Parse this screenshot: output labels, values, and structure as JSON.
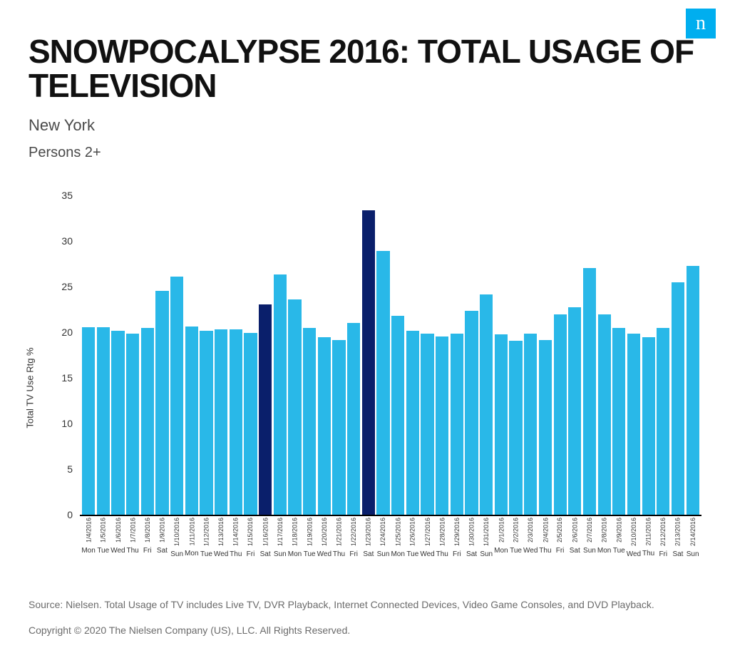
{
  "logo": {
    "text": "n",
    "bg_color": "#00aeef",
    "text_color": "#ffffff"
  },
  "title": {
    "text": "SNOWPOCALYPSE 2016: TOTAL USAGE OF TELEVISION",
    "color": "#111111",
    "fontsize": 46
  },
  "subtitle1": {
    "text": "New York",
    "color": "#4a4a4a",
    "fontsize": 22
  },
  "subtitle2": {
    "text": "Persons 2+",
    "color": "#4a4a4a",
    "fontsize": 20
  },
  "chart": {
    "type": "bar",
    "ylabel": "Total TV Use Rtg %",
    "ylabel_fontsize": 13,
    "ylabel_color": "#333333",
    "ylim": [
      0,
      35
    ],
    "yticks": [
      0,
      5,
      10,
      15,
      20,
      25,
      30,
      35
    ],
    "ytick_fontsize": 14,
    "ytick_color": "#333333",
    "xlabel_fontsize": 9,
    "xlabel_color": "#333333",
    "xday_fontsize": 10,
    "baseline_color": "#000000",
    "bar_color_default": "#29b8e8",
    "bar_color_highlight": "#0a1f6b",
    "background_color": "#ffffff",
    "bars": [
      {
        "date": "1/4/2016",
        "day": "Mon",
        "value": 20.5,
        "highlight": false
      },
      {
        "date": "1/5/2016",
        "day": "Tue",
        "value": 20.5,
        "highlight": false
      },
      {
        "date": "1/6/2016",
        "day": "Wed",
        "value": 20.1,
        "highlight": false
      },
      {
        "date": "1/7/2016",
        "day": "Thu",
        "value": 19.8,
        "highlight": false
      },
      {
        "date": "1/8/2016",
        "day": "Fri",
        "value": 20.4,
        "highlight": false
      },
      {
        "date": "1/9/2016",
        "day": "Sat",
        "value": 24.5,
        "highlight": false
      },
      {
        "date": "1/10/2016",
        "day": "Sun",
        "value": 26.1,
        "highlight": false
      },
      {
        "date": "1/11/2016",
        "day": "Mon",
        "value": 20.6,
        "highlight": false
      },
      {
        "date": "1/12/2016",
        "day": "Tue",
        "value": 20.1,
        "highlight": false
      },
      {
        "date": "1/13/2016",
        "day": "Wed",
        "value": 20.3,
        "highlight": false
      },
      {
        "date": "1/14/2016",
        "day": "Thu",
        "value": 20.3,
        "highlight": false
      },
      {
        "date": "1/15/2016",
        "day": "Fri",
        "value": 19.9,
        "highlight": false
      },
      {
        "date": "1/16/2016",
        "day": "Sat",
        "value": 23.0,
        "highlight": true
      },
      {
        "date": "1/17/2016",
        "day": "Sun",
        "value": 26.3,
        "highlight": false
      },
      {
        "date": "1/18/2016",
        "day": "Mon",
        "value": 23.6,
        "highlight": false
      },
      {
        "date": "1/19/2016",
        "day": "Tue",
        "value": 20.4,
        "highlight": false
      },
      {
        "date": "1/20/2016",
        "day": "Wed",
        "value": 19.4,
        "highlight": false
      },
      {
        "date": "1/21/2016",
        "day": "Thu",
        "value": 19.1,
        "highlight": false
      },
      {
        "date": "1/22/2016",
        "day": "Fri",
        "value": 21.0,
        "highlight": false
      },
      {
        "date": "1/23/2016",
        "day": "Sat",
        "value": 33.3,
        "highlight": true
      },
      {
        "date": "1/24/2016",
        "day": "Sun",
        "value": 28.9,
        "highlight": false
      },
      {
        "date": "1/25/2016",
        "day": "Mon",
        "value": 21.8,
        "highlight": false
      },
      {
        "date": "1/26/2016",
        "day": "Tue",
        "value": 20.1,
        "highlight": false
      },
      {
        "date": "1/27/2016",
        "day": "Wed",
        "value": 19.8,
        "highlight": false
      },
      {
        "date": "1/28/2016",
        "day": "Thu",
        "value": 19.5,
        "highlight": false
      },
      {
        "date": "1/29/2016",
        "day": "Fri",
        "value": 19.8,
        "highlight": false
      },
      {
        "date": "1/30/2016",
        "day": "Sat",
        "value": 22.3,
        "highlight": false
      },
      {
        "date": "1/31/2016",
        "day": "Sun",
        "value": 24.1,
        "highlight": false
      },
      {
        "date": "2/1/2016",
        "day": "Mon",
        "value": 19.7,
        "highlight": false
      },
      {
        "date": "2/2/2016",
        "day": "Tue",
        "value": 19.0,
        "highlight": false
      },
      {
        "date": "2/3/2016",
        "day": "Wed",
        "value": 19.8,
        "highlight": false
      },
      {
        "date": "2/4/2016",
        "day": "Thu",
        "value": 19.1,
        "highlight": false
      },
      {
        "date": "2/5/2016",
        "day": "Fri",
        "value": 21.9,
        "highlight": false
      },
      {
        "date": "2/6/2016",
        "day": "Sat",
        "value": 22.7,
        "highlight": false
      },
      {
        "date": "2/7/2016",
        "day": "Sun",
        "value": 27.0,
        "highlight": false
      },
      {
        "date": "2/8/2016",
        "day": "Mon",
        "value": 21.9,
        "highlight": false
      },
      {
        "date": "2/9/2016",
        "day": "Tue",
        "value": 20.4,
        "highlight": false
      },
      {
        "date": "2/10/2016",
        "day": "Wed",
        "value": 19.8,
        "highlight": false
      },
      {
        "date": "2/11/2016",
        "day": "Thu",
        "value": 19.4,
        "highlight": false
      },
      {
        "date": "2/12/2016",
        "day": "Fri",
        "value": 20.4,
        "highlight": false
      },
      {
        "date": "2/13/2016",
        "day": "Sat",
        "value": 25.4,
        "highlight": false
      },
      {
        "date": "2/14/2016",
        "day": "Sun",
        "value": 27.2,
        "highlight": false
      }
    ]
  },
  "source": {
    "text": "Source: Nielsen. Total Usage of TV includes Live TV, DVR Playback, Internet Connected Devices, Video Game Consoles, and DVD Playback.",
    "color": "#6b6b6b",
    "fontsize": 14
  },
  "copyright": {
    "text": "Copyright © 2020 The Nielsen Company (US), LLC. All Rights Reserved.",
    "color": "#6b6b6b",
    "fontsize": 14
  }
}
